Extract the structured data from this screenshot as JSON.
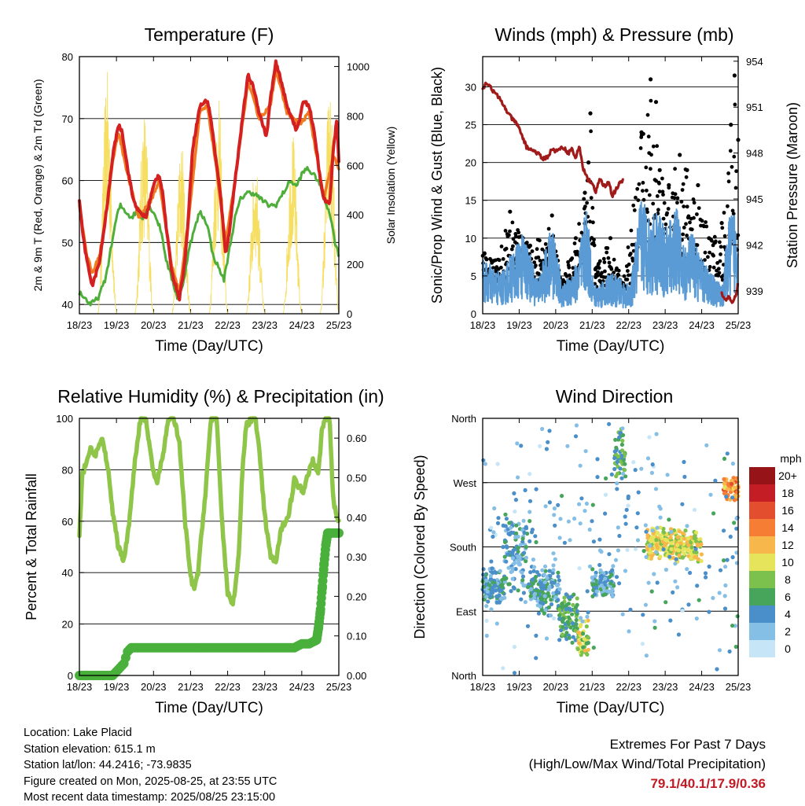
{
  "chart_data": [
    {
      "type": "line",
      "title": "Temperature (F)",
      "xlabel": "Time (Day/UTC)",
      "ylabel": "2m & 9m T (Red, Orange) & 2m Td (Green)",
      "y2label": "Solar Insolation (Yellow)",
      "x_ticks": [
        "18/23",
        "19/23",
        "20/23",
        "21/23",
        "22/23",
        "23/23",
        "24/23",
        "25/23"
      ],
      "y_ticks": [
        40,
        50,
        60,
        70,
        80
      ],
      "y2_ticks": [
        0,
        200,
        400,
        600,
        800,
        1000
      ],
      "ylim": [
        38.5,
        80
      ],
      "y2lim": [
        0,
        1040
      ],
      "xlim": [
        0,
        7
      ],
      "grid": true,
      "colors": {
        "t2m": "#d42020",
        "t9m": "#f07c22",
        "td2m": "#4fae3a",
        "solar": "#f6de63"
      },
      "series": [
        {
          "name": "2m T",
          "x": [
            0,
            0.08,
            0.2,
            0.35,
            0.55,
            0.75,
            0.9,
            1.05,
            1.15,
            1.3,
            1.45,
            1.6,
            1.8,
            1.95,
            2.05,
            2.15,
            2.25,
            2.35,
            2.5,
            2.7,
            2.85,
            2.95,
            3.05,
            3.25,
            3.45,
            3.55,
            3.65,
            3.8,
            3.95,
            4.05,
            4.2,
            4.4,
            4.55,
            4.7,
            4.85,
            4.95,
            5.05,
            5.15,
            5.3,
            5.45,
            5.6,
            5.75,
            5.85,
            5.95,
            6.05,
            6.2,
            6.3,
            6.4,
            6.5,
            6.6,
            6.75,
            6.85,
            6.95,
            7
          ],
          "values": [
            57,
            52,
            47,
            43,
            47,
            56,
            64,
            69,
            68,
            62,
            57,
            55,
            54,
            58,
            60,
            61,
            58,
            52,
            45,
            41,
            47,
            55,
            65,
            72,
            73,
            70,
            65,
            58,
            48,
            52,
            60,
            70,
            77,
            75,
            71,
            69,
            67,
            73,
            79,
            76,
            72,
            70,
            68,
            70,
            73,
            72,
            69,
            65,
            60,
            57,
            56,
            65,
            70,
            63
          ]
        },
        {
          "name": "9m T",
          "x": [
            0,
            0.2,
            0.35,
            0.55,
            0.75,
            0.9,
            1.05,
            1.3,
            1.6,
            1.95,
            2.15,
            2.35,
            2.5,
            2.7,
            2.95,
            3.25,
            3.45,
            3.65,
            3.95,
            4.2,
            4.55,
            4.85,
            5.15,
            5.3,
            5.6,
            5.95,
            6.2,
            6.4,
            6.6,
            6.85,
            7
          ],
          "values": [
            56,
            48,
            45,
            48,
            56,
            63,
            68,
            61,
            54,
            57,
            60,
            52,
            46,
            42,
            54,
            71,
            72,
            64,
            50,
            60,
            76,
            70,
            72,
            78,
            71,
            69,
            71,
            64,
            57,
            64,
            62
          ]
        },
        {
          "name": "2m Td",
          "x": [
            0,
            0.15,
            0.3,
            0.5,
            0.7,
            0.85,
            1.0,
            1.1,
            1.25,
            1.4,
            1.55,
            1.7,
            1.85,
            2.0,
            2.2,
            2.35,
            2.5,
            2.65,
            2.8,
            2.95,
            3.1,
            3.25,
            3.45,
            3.6,
            3.75,
            3.9,
            4.05,
            4.2,
            4.35,
            4.5,
            4.7,
            4.9,
            5.1,
            5.3,
            5.5,
            5.7,
            5.85,
            6.0,
            6.15,
            6.3,
            6.45,
            6.6,
            6.75,
            6.9,
            7
          ],
          "values": [
            42,
            41,
            40,
            41,
            44,
            49,
            54,
            56,
            55,
            54,
            55,
            54,
            56,
            55,
            52,
            47,
            44,
            41,
            43,
            49,
            52,
            55,
            53,
            48,
            46,
            44,
            49,
            54,
            57,
            58,
            58,
            57,
            56,
            56,
            58,
            60,
            59,
            61,
            62,
            61,
            60,
            57,
            55,
            50,
            48
          ]
        },
        {
          "name": "Solar Insolation",
          "axis": "y2",
          "days": [
            0.75,
            1.75,
            2.75,
            3.75,
            4.75,
            5.75,
            6.75
          ],
          "peaks": [
            980,
            840,
            700,
            880,
            620,
            740,
            920
          ]
        }
      ]
    },
    {
      "type": "line",
      "title": "Winds (mph) & Pressure (mb)",
      "xlabel": "Time (Day/UTC)",
      "ylabel": "Sonic/Prop Wind & Gust (Blue, Black)",
      "y2label": "Station Pressure (Maroon)",
      "x_ticks": [
        "18/23",
        "19/23",
        "20/23",
        "21/23",
        "22/23",
        "23/23",
        "24/23",
        "25/23"
      ],
      "y_ticks": [
        0,
        5,
        10,
        15,
        20,
        25,
        30
      ],
      "y2_ticks": [
        939,
        942,
        945,
        948,
        951,
        954
      ],
      "ylim": [
        0,
        34
      ],
      "y2lim": [
        937.5,
        954.3
      ],
      "xlim": [
        0,
        7
      ],
      "grid": true,
      "colors": {
        "wind": "#5a9bd5",
        "gust": "#000000",
        "pressure": "#a01a1a"
      },
      "series": [
        {
          "name": "Pressure",
          "axis": "y2",
          "x": [
            0,
            0.1,
            0.2,
            0.3,
            0.45,
            0.6,
            0.75,
            0.9,
            1.0,
            1.1,
            1.2,
            1.35,
            1.5,
            1.65,
            1.8,
            1.9,
            2.0,
            2.1,
            2.2,
            2.35,
            2.45,
            2.55,
            2.65,
            2.75,
            2.85,
            3.0,
            3.1,
            3.2,
            3.35,
            3.45,
            3.55,
            3.65,
            3.75,
            3.85
          ],
          "values": [
            952.2,
            952.6,
            952.4,
            952.0,
            951.6,
            951.0,
            950.4,
            950.0,
            949.6,
            949.0,
            948.4,
            948.2,
            948.0,
            947.6,
            947.8,
            948.3,
            948.1,
            948.2,
            948.4,
            948.0,
            948.3,
            947.6,
            948.5,
            947.0,
            946.4,
            946.0,
            945.4,
            946.3,
            945.8,
            946.2,
            945.2,
            945.6,
            946.0,
            946.2
          ]
        },
        {
          "name": "Pressure (25th)",
          "axis": "y2",
          "x": [
            6.55,
            6.65,
            6.75,
            6.85,
            6.95,
            7
          ],
          "values": [
            938.8,
            938.4,
            938.6,
            938.2,
            938.8,
            939.5
          ]
        },
        {
          "name": "Wind",
          "mean_levels": [
            [
              0,
              4
            ],
            [
              0.5,
              3
            ],
            [
              0.9,
              5
            ],
            [
              1.15,
              6
            ],
            [
              1.5,
              2.5
            ],
            [
              1.9,
              6.5
            ],
            [
              2.2,
              2
            ],
            [
              2.6,
              4
            ],
            [
              2.85,
              8
            ],
            [
              3.05,
              2
            ],
            [
              3.5,
              3
            ],
            [
              3.8,
              2.5
            ],
            [
              4.05,
              2
            ],
            [
              4.35,
              9
            ],
            [
              4.6,
              7
            ],
            [
              4.8,
              8
            ],
            [
              5.0,
              6
            ],
            [
              5.3,
              8
            ],
            [
              5.5,
              5
            ],
            [
              5.75,
              6
            ],
            [
              6.0,
              4
            ],
            [
              6.3,
              3
            ],
            [
              6.55,
              2
            ],
            [
              6.8,
              8
            ],
            [
              7,
              7
            ]
          ]
        },
        {
          "name": "Gust",
          "peaks": [
            [
              0.05,
              8
            ],
            [
              0.3,
              7
            ],
            [
              0.75,
              13.5
            ],
            [
              1.1,
              10
            ],
            [
              1.3,
              9
            ],
            [
              1.9,
              13
            ],
            [
              2.15,
              4
            ],
            [
              2.55,
              10
            ],
            [
              2.8,
              16
            ],
            [
              2.9,
              20
            ],
            [
              2.95,
              26.5
            ],
            [
              3.1,
              6
            ],
            [
              3.5,
              10
            ],
            [
              3.85,
              4
            ],
            [
              4.35,
              24
            ],
            [
              4.6,
              31
            ],
            [
              4.75,
              28
            ],
            [
              4.85,
              19
            ],
            [
              5.1,
              17
            ],
            [
              5.4,
              21
            ],
            [
              5.6,
              19
            ],
            [
              5.9,
              17
            ],
            [
              6.2,
              10
            ],
            [
              6.55,
              12
            ],
            [
              6.8,
              25
            ],
            [
              6.9,
              31.5
            ],
            [
              7,
              23
            ]
          ]
        }
      ]
    },
    {
      "type": "line",
      "title": "Relative Humidity (%) & Precipitation (in)",
      "xlabel": "Time (Day/UTC)",
      "ylabel": "Percent & Total Rainfall",
      "x_ticks": [
        "18/23",
        "19/23",
        "20/23",
        "21/23",
        "22/23",
        "23/23",
        "24/23",
        "25/23"
      ],
      "y_ticks": [
        0,
        20,
        40,
        60,
        80,
        100
      ],
      "y2_ticks": [
        "0.00",
        "0.10",
        "0.20",
        "0.30",
        "0.40",
        "0.50",
        "0.60"
      ],
      "ylim": [
        0,
        100
      ],
      "y2lim": [
        0,
        0.65
      ],
      "xlim": [
        0,
        7
      ],
      "grid": true,
      "colors": {
        "rh": "#8fc549",
        "rain": "#48b03b"
      },
      "series": [
        {
          "name": "Relative Humidity",
          "x": [
            0,
            0.08,
            0.2,
            0.3,
            0.45,
            0.6,
            0.75,
            0.9,
            1.05,
            1.2,
            1.35,
            1.5,
            1.65,
            1.8,
            1.9,
            2.0,
            2.1,
            2.25,
            2.4,
            2.55,
            2.7,
            2.85,
            3.0,
            3.1,
            3.2,
            3.4,
            3.55,
            3.7,
            3.85,
            4.0,
            4.15,
            4.3,
            4.4,
            4.5,
            4.65,
            4.75,
            4.85,
            5.0,
            5.15,
            5.3,
            5.45,
            5.55,
            5.65,
            5.8,
            5.95,
            6.05,
            6.2,
            6.3,
            6.45,
            6.55,
            6.65,
            6.75,
            6.85,
            7
          ],
          "values": [
            54,
            78,
            84,
            88,
            86,
            92,
            83,
            63,
            50,
            45,
            60,
            84,
            100,
            99,
            88,
            79,
            75,
            85,
            100,
            100,
            90,
            60,
            38,
            34,
            40,
            71,
            100,
            100,
            60,
            32,
            28,
            47,
            80,
            97,
            100,
            100,
            88,
            62,
            47,
            44,
            57,
            60,
            63,
            76,
            73,
            72,
            80,
            84,
            79,
            96,
            100,
            100,
            68,
            59
          ]
        },
        {
          "name": "Total Rainfall",
          "axis": "y2",
          "x": [
            0,
            0.9,
            1.1,
            1.2,
            1.3,
            1.4,
            1.5,
            1.6,
            1.7,
            3.0,
            5.8,
            6.0,
            6.2,
            6.4,
            6.45,
            6.5,
            6.55,
            6.6,
            6.65,
            6.7,
            7
          ],
          "values": [
            0,
            0,
            0.02,
            0.03,
            0.06,
            0.07,
            0.07,
            0.07,
            0.07,
            0.07,
            0.07,
            0.08,
            0.08,
            0.09,
            0.12,
            0.16,
            0.22,
            0.28,
            0.33,
            0.36,
            0.36
          ]
        }
      ]
    },
    {
      "type": "scatter",
      "title": "Wind Direction",
      "xlabel": "Time (Day/UTC)",
      "ylabel": "Direction (Colored By Speed)",
      "x_ticks": [
        "18/23",
        "19/23",
        "20/23",
        "21/23",
        "22/23",
        "23/23",
        "24/23",
        "25/23"
      ],
      "y_ticks": [
        "North",
        "East",
        "South",
        "West",
        "North"
      ],
      "ylim": [
        0,
        360
      ],
      "xlim": [
        0,
        7
      ],
      "grid": true,
      "colorbar": {
        "title": "mph",
        "labels": [
          "0",
          "2",
          "4",
          "6",
          "8",
          "10",
          "12",
          "14",
          "16",
          "18",
          "20+"
        ],
        "colors": [
          "#c6e5f6",
          "#86bfe6",
          "#4a8fc9",
          "#47a55b",
          "#7cc04e",
          "#e5e45b",
          "#f8b74a",
          "#f57d34",
          "#e34e2f",
          "#c41d26",
          "#961418"
        ]
      },
      "clusters": [
        {
          "x0": 0,
          "x1": 0.6,
          "dir_center": 125,
          "spread": 25,
          "speed": 4
        },
        {
          "x0": 0.6,
          "x1": 1.2,
          "dir_center": 170,
          "spread": 60,
          "speed": 4
        },
        {
          "x0": 1.3,
          "x1": 2.1,
          "dir_center": 120,
          "spread": 40,
          "speed": 4
        },
        {
          "x0": 2.1,
          "x1": 2.6,
          "dir_center": 80,
          "spread": 40,
          "speed": 6
        },
        {
          "x0": 2.6,
          "x1": 2.9,
          "dir_center": 50,
          "spread": 30,
          "speed": 9
        },
        {
          "x0": 3.0,
          "x1": 3.6,
          "dir_center": 130,
          "spread": 25,
          "speed": 4
        },
        {
          "x0": 3.6,
          "x1": 3.9,
          "dir_center": 310,
          "spread": 40,
          "speed": 6
        },
        {
          "x0": 4.5,
          "x1": 5.3,
          "dir_center": 185,
          "spread": 25,
          "speed": 10
        },
        {
          "x0": 5.3,
          "x1": 6.0,
          "dir_center": 180,
          "spread": 25,
          "speed": 10
        },
        {
          "x0": 6.6,
          "x1": 7.0,
          "dir_center": 260,
          "spread": 20,
          "speed": 13
        },
        {
          "x0": 0,
          "x1": 7.0,
          "dir_center": 180,
          "spread": 180,
          "speed": 3
        }
      ]
    }
  ],
  "info": {
    "location": "Location: Lake Placid",
    "elevation": "Station elevation: 615.1 m",
    "latlon": "Station lat/lon: 44.2416; -73.9835",
    "created": "Figure created on Mon, 2025-08-25, at 23:55 UTC",
    "recent": "Most recent data timestamp: 2025/08/25 23:15:00"
  },
  "extremes": {
    "title": "Extremes For Past 7 Days",
    "subtitle": "(High/Low/Max Wind/Total Precipitation)",
    "values": "79.1/40.1/17.9/0.36"
  }
}
